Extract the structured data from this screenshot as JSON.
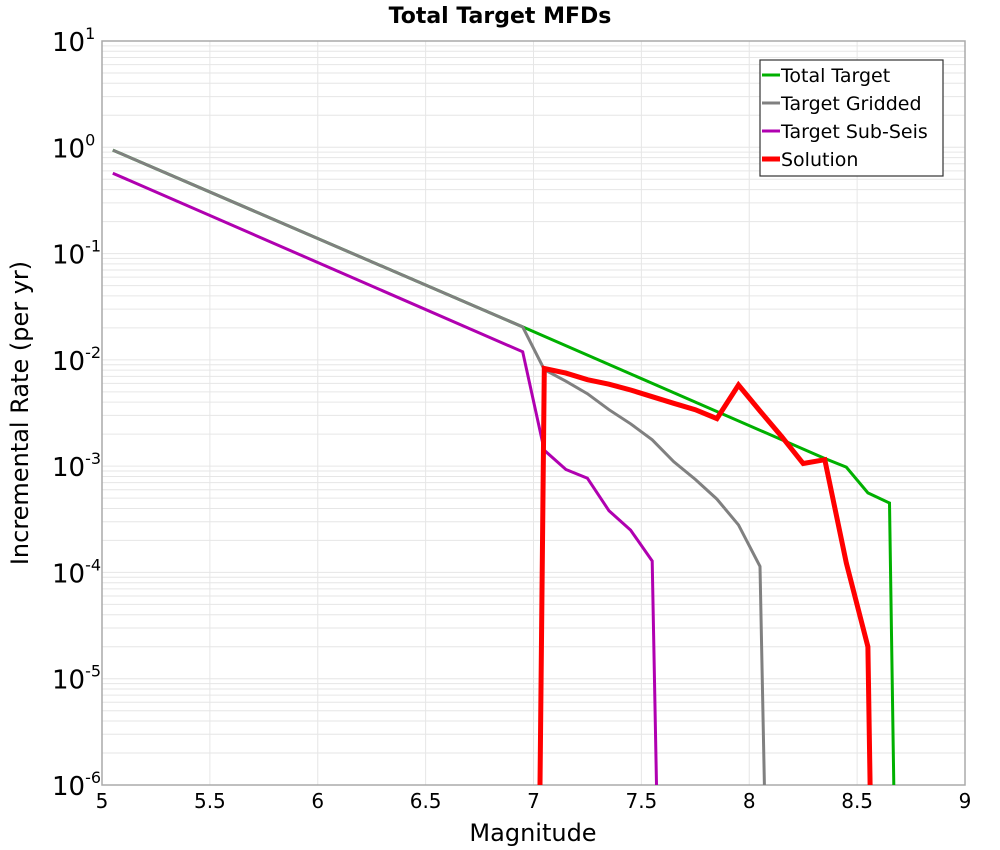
{
  "chart_data": {
    "type": "line",
    "title": "Total Target MFDs",
    "xlabel": "Magnitude",
    "ylabel": "Incremental Rate (per yr)",
    "xlim": [
      5,
      9
    ],
    "ylim": [
      1e-06,
      10
    ],
    "yscale": "log",
    "grid": true,
    "legend_position": "upper right",
    "x_ticks": [
      "5",
      "5.5",
      "6",
      "6.5",
      "7",
      "7.5",
      "8",
      "8.5",
      "9"
    ],
    "y_ticks": [
      {
        "base": "10",
        "exp": "1",
        "value": 10
      },
      {
        "base": "10",
        "exp": "0",
        "value": 1
      },
      {
        "base": "10",
        "exp": "-1",
        "value": 0.1
      },
      {
        "base": "10",
        "exp": "-2",
        "value": 0.01
      },
      {
        "base": "10",
        "exp": "-3",
        "value": 0.001
      },
      {
        "base": "10",
        "exp": "-4",
        "value": 0.0001
      },
      {
        "base": "10",
        "exp": "-5",
        "value": 1e-05
      },
      {
        "base": "10",
        "exp": "-6",
        "value": 1e-06
      }
    ],
    "series": [
      {
        "name": "Total Target",
        "color": "#00b000",
        "width": 3,
        "points": [
          [
            5.05,
            0.94
          ],
          [
            6.95,
            0.0204
          ],
          [
            8.35,
            0.00118
          ],
          [
            8.45,
            0.00098
          ],
          [
            8.55,
            0.00056
          ],
          [
            8.65,
            0.00045
          ],
          [
            8.67,
            1e-06
          ]
        ]
      },
      {
        "name": "Target Gridded",
        "color": "#808080",
        "width": 3,
        "points": [
          [
            5.05,
            0.94
          ],
          [
            6.95,
            0.0204
          ],
          [
            7.05,
            0.0081
          ],
          [
            7.15,
            0.0063
          ],
          [
            7.25,
            0.0048
          ],
          [
            7.35,
            0.0034
          ],
          [
            7.45,
            0.0025
          ],
          [
            7.55,
            0.00177
          ],
          [
            7.65,
            0.0011
          ],
          [
            7.75,
            0.00075
          ],
          [
            7.85,
            0.00049
          ],
          [
            7.95,
            0.00028
          ],
          [
            8.05,
            0.000114
          ],
          [
            8.07,
            1e-06
          ]
        ]
      },
      {
        "name": "Target Sub-Seis",
        "color": "#b000b0",
        "width": 3,
        "points": [
          [
            5.05,
            0.57
          ],
          [
            6.95,
            0.0119
          ],
          [
            7.05,
            0.00141
          ],
          [
            7.15,
            0.00093
          ],
          [
            7.25,
            0.00077
          ],
          [
            7.35,
            0.00038
          ],
          [
            7.45,
            0.00025
          ],
          [
            7.55,
            0.000128
          ],
          [
            7.57,
            1e-06
          ]
        ]
      },
      {
        "name": "Solution",
        "color": "#ff0000",
        "width": 5,
        "points": [
          [
            7.03,
            1e-06
          ],
          [
            7.05,
            0.0083
          ],
          [
            7.15,
            0.0075
          ],
          [
            7.25,
            0.0065
          ],
          [
            7.35,
            0.0059
          ],
          [
            7.45,
            0.0052
          ],
          [
            7.55,
            0.0045
          ],
          [
            7.65,
            0.0039
          ],
          [
            7.75,
            0.0034
          ],
          [
            7.85,
            0.0028
          ],
          [
            7.95,
            0.0058
          ],
          [
            8.05,
            0.0033
          ],
          [
            8.15,
            0.0019
          ],
          [
            8.25,
            0.00106
          ],
          [
            8.35,
            0.00115
          ],
          [
            8.45,
            0.000123
          ],
          [
            8.55,
            2e-05
          ],
          [
            8.56,
            1e-06
          ]
        ]
      }
    ]
  }
}
